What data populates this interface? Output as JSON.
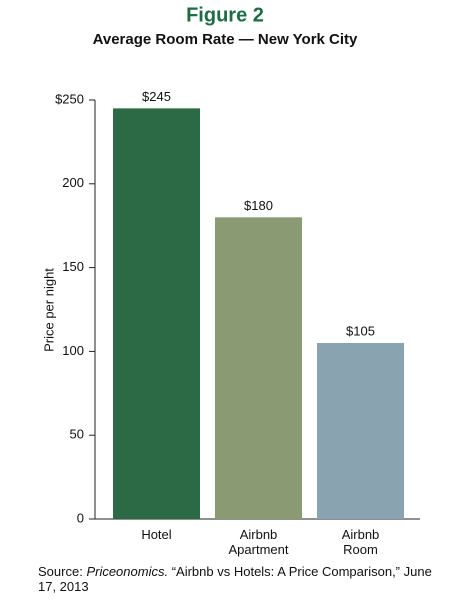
{
  "chart_data": {
    "type": "bar",
    "title": "Figure 2",
    "subtitle": "Average Room Rate — New York City",
    "y_label": "Price per night",
    "categories": [
      "Hotel",
      "Airbnb Apartment",
      "Airbnb Room"
    ],
    "values": [
      245,
      180,
      105
    ],
    "value_labels": [
      "$245",
      "$180",
      "$105"
    ],
    "colors": [
      "#2b6a45",
      "#8a9a72",
      "#8aa3b0"
    ],
    "ylim": [
      0,
      250
    ],
    "yticks": [
      0,
      50,
      100,
      150,
      200,
      {
        "value": 250,
        "label": "$250"
      }
    ],
    "grid": false,
    "source": {
      "label": "Source:",
      "publisher": "Priceonomics.",
      "text": "“Airbnb vs Hotels: A Price Comparison,” June 17, 2013"
    }
  }
}
